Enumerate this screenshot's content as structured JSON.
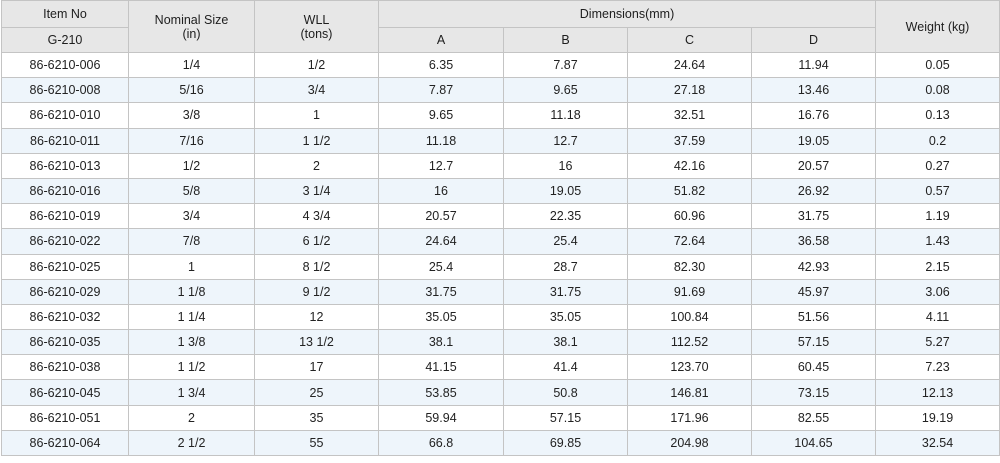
{
  "table": {
    "headers": {
      "item_no": "Item No",
      "item_sub": "G-210",
      "nominal_size": "Nominal Size",
      "nominal_unit": "(in)",
      "wll": "WLL",
      "wll_unit": "(tons)",
      "dimensions": "Dimensions(mm)",
      "a": "A",
      "b": "B",
      "c": "C",
      "d": "D",
      "weight": "Weight (kg)"
    },
    "rows": [
      [
        "86-6210-006",
        "1/4",
        "1/2",
        "6.35",
        "7.87",
        "24.64",
        "11.94",
        "0.05"
      ],
      [
        "86-6210-008",
        "5/16",
        "3/4",
        "7.87",
        "9.65",
        "27.18",
        "13.46",
        "0.08"
      ],
      [
        "86-6210-010",
        "3/8",
        "1",
        "9.65",
        "11.18",
        "32.51",
        "16.76",
        "0.13"
      ],
      [
        "86-6210-011",
        "7/16",
        "1 1/2",
        "11.18",
        "12.7",
        "37.59",
        "19.05",
        "0.2"
      ],
      [
        "86-6210-013",
        "1/2",
        "2",
        "12.7",
        "16",
        "42.16",
        "20.57",
        "0.27"
      ],
      [
        "86-6210-016",
        "5/8",
        "3 1/4",
        "16",
        "19.05",
        "51.82",
        "26.92",
        "0.57"
      ],
      [
        "86-6210-019",
        "3/4",
        "4 3/4",
        "20.57",
        "22.35",
        "60.96",
        "31.75",
        "1.19"
      ],
      [
        "86-6210-022",
        "7/8",
        "6 1/2",
        "24.64",
        "25.4",
        "72.64",
        "36.58",
        "1.43"
      ],
      [
        "86-6210-025",
        "1",
        "8 1/2",
        "25.4",
        "28.7",
        "82.30",
        "42.93",
        "2.15"
      ],
      [
        "86-6210-029",
        "1 1/8",
        "9 1/2",
        "31.75",
        "31.75",
        "91.69",
        "45.97",
        "3.06"
      ],
      [
        "86-6210-032",
        "1 1/4",
        "12",
        "35.05",
        "35.05",
        "100.84",
        "51.56",
        "4.11"
      ],
      [
        "86-6210-035",
        "1 3/8",
        "13 1/2",
        "38.1",
        "38.1",
        "112.52",
        "57.15",
        "5.27"
      ],
      [
        "86-6210-038",
        "1 1/2",
        "17",
        "41.15",
        "41.4",
        "123.70",
        "60.45",
        "7.23"
      ],
      [
        "86-6210-045",
        "1 3/4",
        "25",
        "53.85",
        "50.8",
        "146.81",
        "73.15",
        "12.13"
      ],
      [
        "86-6210-051",
        "2",
        "35",
        "59.94",
        "57.15",
        "171.96",
        "82.55",
        "19.19"
      ],
      [
        "86-6210-064",
        "2 1/2",
        "55",
        "66.8",
        "69.85",
        "204.98",
        "104.65",
        "32.54"
      ]
    ]
  }
}
